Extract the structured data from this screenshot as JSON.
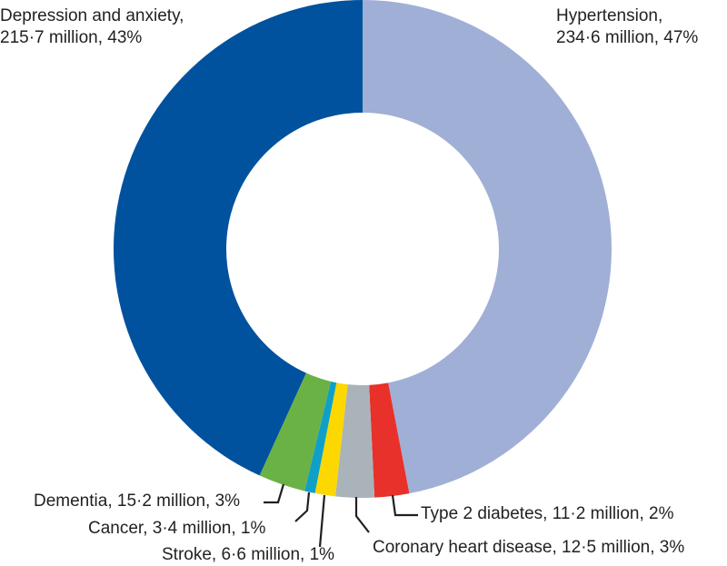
{
  "chart_data": {
    "type": "pie",
    "donut": true,
    "unit": "million",
    "slices": [
      {
        "label": "Hypertension",
        "value": 234.6,
        "percent": 47,
        "color": "#a0afd6",
        "line1": "Hypertension,",
        "line2": "234·6 million, 47%"
      },
      {
        "label": "Type 2 diabetes",
        "value": 11.2,
        "percent": 2,
        "color": "#e8312a",
        "line1": "Type 2 diabetes, 11·2 million, 2%"
      },
      {
        "label": "Coronary heart disease",
        "value": 12.5,
        "percent": 3,
        "color": "#aab3ba",
        "line1": "Coronary heart disease, 12·5 million, 3%"
      },
      {
        "label": "Stroke",
        "value": 6.6,
        "percent": 1,
        "color": "#fcd700",
        "line1": "Stroke, 6·6 million, 1%"
      },
      {
        "label": "Cancer",
        "value": 3.4,
        "percent": 1,
        "color": "#0fa0c8",
        "line1": "Cancer, 3·4 million, 1%"
      },
      {
        "label": "Dementia",
        "value": 15.2,
        "percent": 3,
        "color": "#6ab245",
        "line1": "Dementia, 15·2 million, 3%"
      },
      {
        "label": "Depression and anxiety",
        "value": 215.7,
        "percent": 43,
        "color": "#00529e",
        "line1": "Depression and anxiety,",
        "line2": "215·7 million, 43%"
      }
    ]
  }
}
